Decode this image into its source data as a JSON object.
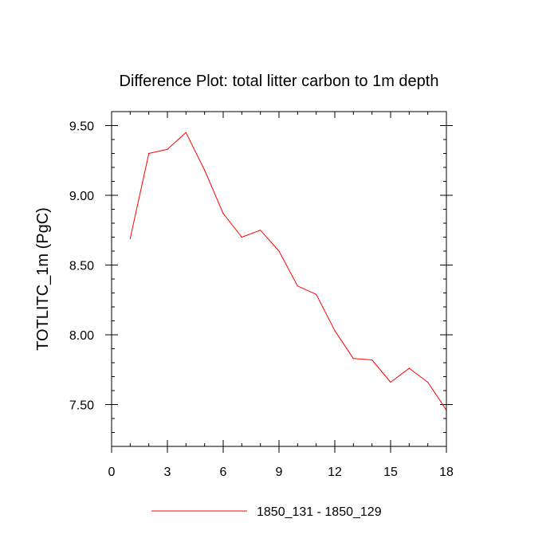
{
  "chart_data": {
    "type": "line",
    "title": "Difference Plot: total litter carbon to 1m depth",
    "xlabel": "",
    "ylabel": "TOTLITC_1m  (PgC)",
    "xlim": [
      0,
      18
    ],
    "ylim": [
      7.2,
      9.6
    ],
    "grid": false,
    "legend_position": "bottom-center",
    "xticks": [
      0,
      3,
      6,
      9,
      12,
      15,
      18
    ],
    "xtick_labels": [
      "0",
      "3",
      "6",
      "9",
      "12",
      "15",
      "18"
    ],
    "yticks": [
      7.5,
      8.0,
      8.5,
      9.0,
      9.5
    ],
    "ytick_labels": [
      "7.50",
      "8.00",
      "8.50",
      "9.00",
      "9.50"
    ],
    "x_minor_step": 1,
    "y_minor_step": 0.1,
    "series": [
      {
        "name": "1850_131 - 1850_129",
        "color": "#ff0000",
        "x": [
          1,
          2,
          3,
          4,
          5,
          6,
          7,
          8,
          9,
          10,
          11,
          12,
          13,
          14,
          15,
          16,
          17,
          18
        ],
        "values": [
          8.69,
          9.3,
          9.33,
          9.45,
          9.18,
          8.87,
          8.7,
          8.75,
          8.6,
          8.35,
          8.29,
          8.03,
          7.83,
          7.82,
          7.66,
          7.76,
          7.66,
          7.46
        ]
      }
    ]
  }
}
